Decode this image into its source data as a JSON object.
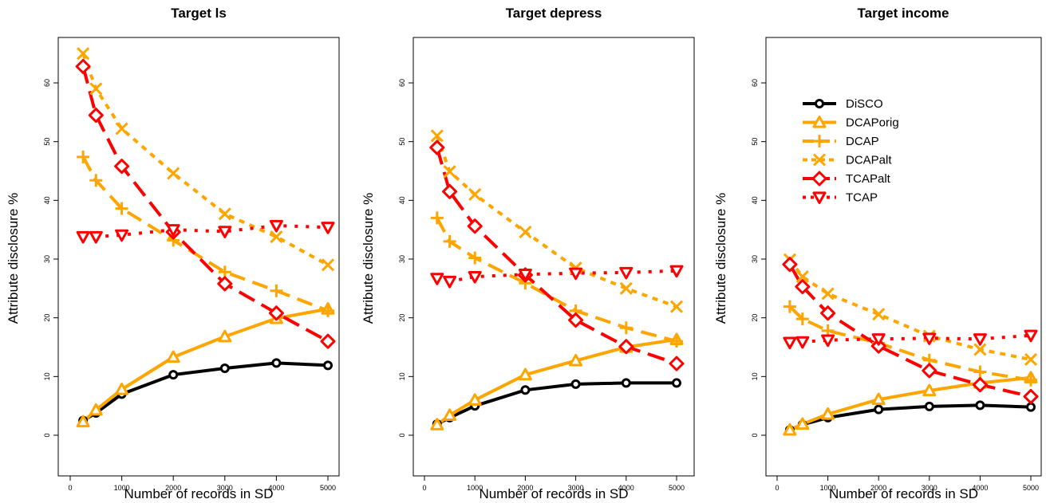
{
  "chart_data": [
    {
      "type": "line",
      "title": "Target ls",
      "xlabel": "Number of records in SD",
      "ylabel": "Attribute disclosure %",
      "x": [
        250,
        500,
        1000,
        2000,
        3000,
        4000,
        5000
      ],
      "xticks": [
        "0",
        "1000",
        "2000",
        "3000",
        "4000",
        "5000"
      ],
      "yticks": [
        "0",
        "10",
        "20",
        "30",
        "40",
        "50",
        "60"
      ],
      "xlim": [
        0,
        5000
      ],
      "ylim": [
        -4,
        69
      ],
      "series": [
        {
          "name": "DiSCO",
          "values": [
            2.5,
            3.8,
            7.0,
            10.3,
            11.4,
            12.3,
            11.9
          ]
        },
        {
          "name": "DCAPorig",
          "values": [
            2.3,
            4.3,
            7.8,
            13.3,
            16.8,
            19.9,
            21.5
          ]
        },
        {
          "name": "DCAP",
          "values": [
            47.4,
            43.4,
            38.6,
            33.2,
            27.8,
            24.6,
            21.2
          ]
        },
        {
          "name": "DCAPalt",
          "values": [
            65.0,
            59.0,
            52.2,
            44.6,
            37.7,
            33.8,
            29.0
          ]
        },
        {
          "name": "TCAPalt",
          "values": [
            62.8,
            54.5,
            45.8,
            34.6,
            25.8,
            20.8,
            16.0
          ]
        },
        {
          "name": "TCAP",
          "values": [
            33.8,
            33.8,
            34.1,
            35.0,
            34.7,
            35.7,
            35.4
          ]
        }
      ]
    },
    {
      "type": "line",
      "title": "Target depress",
      "xlabel": "Number of records in SD",
      "ylabel": "Attribute disclosure %",
      "x": [
        250,
        500,
        1000,
        2000,
        3000,
        4000,
        5000
      ],
      "xticks": [
        "0",
        "1000",
        "2000",
        "3000",
        "4000",
        "5000"
      ],
      "yticks": [
        "0",
        "10",
        "20",
        "30",
        "40",
        "50",
        "60"
      ],
      "xlim": [
        0,
        5000
      ],
      "ylim": [
        -4,
        69
      ],
      "series": [
        {
          "name": "DiSCO",
          "values": [
            1.9,
            3.0,
            5.0,
            7.7,
            8.7,
            8.9,
            8.9
          ]
        },
        {
          "name": "DCAPorig",
          "values": [
            1.8,
            3.4,
            6.0,
            10.3,
            12.7,
            15.0,
            16.3
          ]
        },
        {
          "name": "DCAP",
          "values": [
            37.0,
            33.0,
            30.2,
            25.9,
            21.2,
            18.3,
            16.0
          ]
        },
        {
          "name": "DCAPalt",
          "values": [
            51.0,
            44.9,
            41.0,
            34.6,
            28.5,
            25.0,
            21.9
          ]
        },
        {
          "name": "TCAPalt",
          "values": [
            49.0,
            41.5,
            35.6,
            27.3,
            19.6,
            15.1,
            12.2
          ]
        },
        {
          "name": "TCAP",
          "values": [
            26.7,
            26.2,
            27.0,
            27.4,
            27.6,
            27.7,
            28.0
          ]
        }
      ]
    },
    {
      "type": "line",
      "title": "Target income",
      "xlabel": "Number of records in SD",
      "ylabel": "Attribute disclosure %",
      "x": [
        250,
        500,
        1000,
        2000,
        3000,
        4000,
        5000
      ],
      "xticks": [
        "0",
        "1000",
        "2000",
        "3000",
        "4000",
        "5000"
      ],
      "yticks": [
        "0",
        "10",
        "20",
        "30",
        "40",
        "50",
        "60"
      ],
      "xlim": [
        0,
        5000
      ],
      "ylim": [
        -4,
        69
      ],
      "legend": "top-right",
      "series": [
        {
          "name": "DiSCO",
          "values": [
            0.9,
            1.8,
            3.0,
            4.4,
            4.9,
            5.1,
            4.8
          ]
        },
        {
          "name": "DCAPorig",
          "values": [
            0.9,
            1.9,
            3.6,
            6.1,
            7.6,
            8.9,
            9.8
          ]
        },
        {
          "name": "DCAP",
          "values": [
            21.9,
            19.8,
            17.8,
            15.7,
            12.8,
            10.8,
            9.4
          ]
        },
        {
          "name": "DCAPalt",
          "values": [
            29.9,
            27.0,
            24.1,
            20.6,
            16.9,
            14.6,
            12.9
          ]
        },
        {
          "name": "TCAPalt",
          "values": [
            29.1,
            25.3,
            20.8,
            15.2,
            11.0,
            8.6,
            6.6
          ]
        },
        {
          "name": "TCAP",
          "values": [
            15.8,
            15.9,
            16.2,
            16.4,
            16.5,
            16.4,
            17.0
          ]
        }
      ]
    }
  ],
  "series_styles": [
    {
      "name": "DiSCO",
      "color": "#000000",
      "dash": "",
      "marker": "circle-open"
    },
    {
      "name": "DCAPorig",
      "color": "#ffa500",
      "dash": "",
      "marker": "triangle-open"
    },
    {
      "name": "DCAP",
      "color": "#ffa500",
      "dash": "20 10",
      "marker": "plus"
    },
    {
      "name": "DCAPalt",
      "color": "#ffa500",
      "dash": "7 7",
      "marker": "cross"
    },
    {
      "name": "TCAPalt",
      "color": "#ff0000",
      "dash": "22 10",
      "marker": "diamond-open"
    },
    {
      "name": "TCAP",
      "color": "#ff0000",
      "dash": "4 10",
      "marker": "triangle-down-open"
    }
  ]
}
